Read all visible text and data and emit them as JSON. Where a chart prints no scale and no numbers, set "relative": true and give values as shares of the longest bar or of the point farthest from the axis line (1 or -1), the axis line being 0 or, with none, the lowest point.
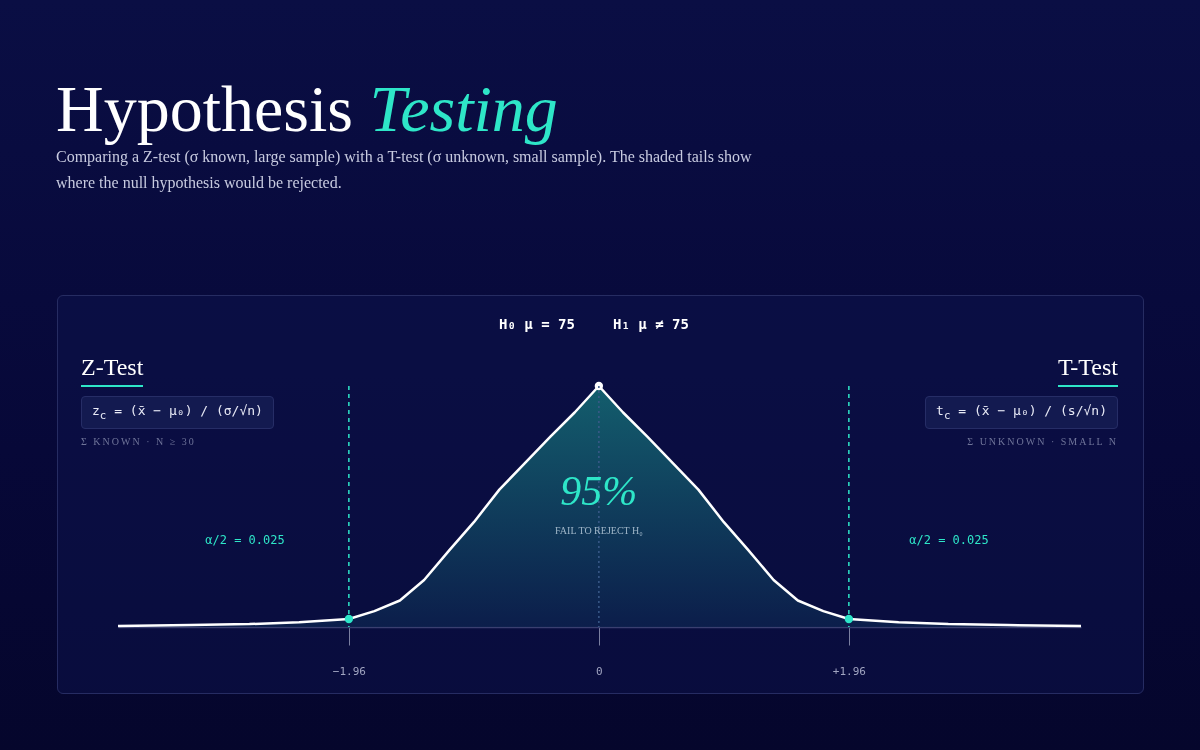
{
  "chart_data": {
    "type": "area",
    "relative": true,
    "title": "Hypothesis Testing",
    "subtitle": "Comparing a Z-test (σ known, large sample) with a T-test (σ unknown, small sample). The shaded tails show where the null hypothesis would be rejected.",
    "xlim": [
      -3.77,
      3.78
    ],
    "xticks": [
      {
        "value": -1.96,
        "label": "−1.96"
      },
      0,
      {
        "value": 1.96,
        "label": "+1.96"
      }
    ],
    "series": [
      {
        "type": "area",
        "color": "#17807f",
        "x": [
          -3.77,
          -3.2,
          -2.74,
          -2.35,
          -1.96,
          -1.76,
          -1.56,
          -1.37,
          -1.17,
          -0.98,
          -0.78,
          -0.58,
          -0.38,
          -0.19,
          0,
          0.19,
          0.38,
          0.58,
          0.78,
          0.98,
          1.17,
          1.37,
          1.56,
          1.76,
          1.96,
          2.35,
          2.74,
          3.2,
          3.78
        ],
        "values": [
          0.004,
          0.008,
          0.012,
          0.02,
          0.033,
          0.066,
          0.11,
          0.195,
          0.32,
          0.435,
          0.57,
          0.68,
          0.79,
          0.89,
          1,
          0.89,
          0.79,
          0.68,
          0.57,
          0.435,
          0.32,
          0.195,
          0.11,
          0.066,
          0.033,
          0.02,
          0.012,
          0.008,
          0.004
        ]
      },
      {
        "type": "scatter",
        "marker": "circle",
        "x": [
          -1.96,
          0,
          1.96
        ],
        "values": [
          0.033,
          1,
          0.033
        ],
        "colors": [
          "#2ee6c8",
          "#ffffff",
          "#2ee6c8"
        ]
      }
    ],
    "ref_lines": [
      {
        "axis": "x",
        "value": -1.96,
        "color": "#2ee6c8",
        "line_style": "dashed"
      },
      {
        "axis": "x",
        "value": 1.96,
        "color": "#2ee6c8",
        "line_style": "dashed"
      },
      {
        "axis": "x",
        "value": 0,
        "color": "#3b5a8a",
        "line_style": "dotted"
      }
    ],
    "annotations": [
      "H₀ μ = 75",
      "H₁ μ ≠ 75",
      "Z-Test",
      "z$_{c}$ = (x̄ − μ₀) / (σ/√n)",
      "Σ KNOWN · N ≥ 30",
      "T-Test",
      "t$_{c}$ = (x̄ − μ₀) / (s/√n)",
      "Σ UNKNOWN · SMALL N",
      "α/2 = 0.025",
      "α/2 = 0.025",
      {
        "text": "95%",
        "x": 0,
        "y": 0.56
      },
      {
        "text": "FAIL TO REJECT H₀",
        "x": 0,
        "y": 0.4
      }
    ]
  }
}
